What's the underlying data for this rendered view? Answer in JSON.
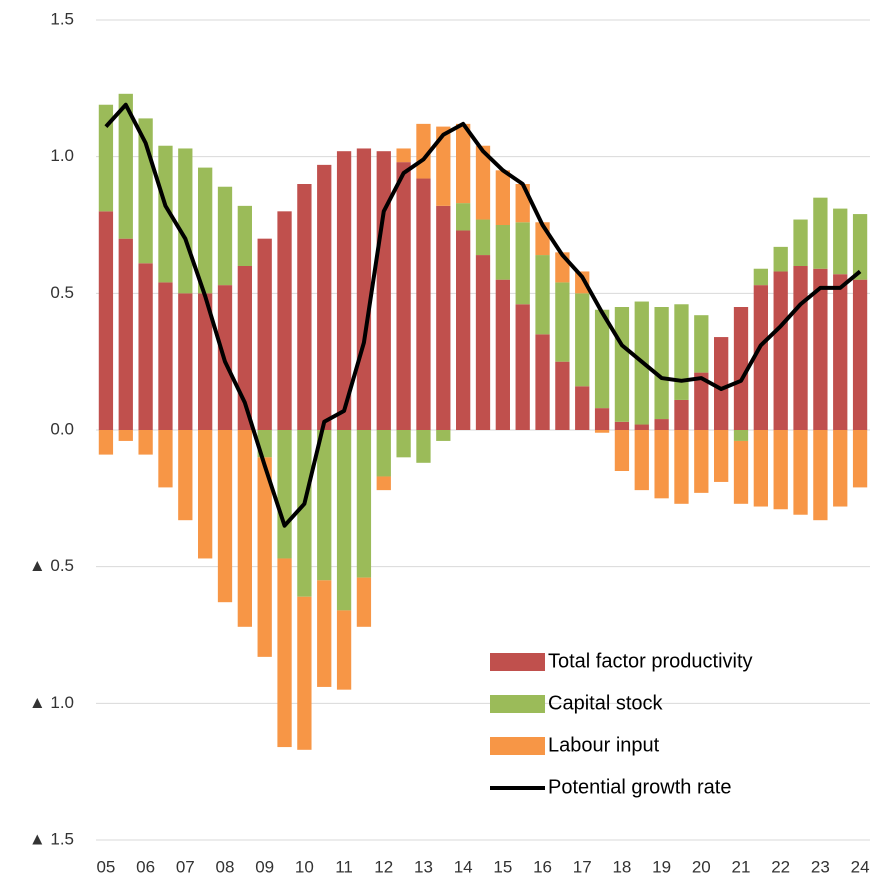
{
  "chart_data": {
    "type": "bar",
    "stacked": true,
    "categories": [
      "05",
      null,
      "06",
      null,
      "07",
      null,
      "08",
      null,
      "09",
      null,
      "10",
      null,
      "11",
      null,
      "12",
      null,
      "13",
      null,
      "14",
      null,
      "15",
      null,
      "16",
      null,
      "17",
      null,
      "18",
      null,
      "19",
      null,
      "20",
      null,
      "21",
      null,
      "22",
      null,
      "23",
      null,
      "24"
    ],
    "series": [
      {
        "name": "Total factor productivity",
        "color": "#c0504d",
        "type": "bar",
        "values": [
          0.8,
          0.7,
          0.61,
          0.54,
          0.5,
          0.5,
          0.53,
          0.6,
          0.7,
          0.8,
          0.9,
          0.97,
          1.02,
          1.03,
          1.02,
          0.98,
          0.92,
          0.82,
          0.73,
          0.64,
          0.55,
          0.46,
          0.35,
          0.25,
          0.16,
          0.08,
          0.03,
          0.02,
          0.04,
          0.11,
          0.21,
          0.34,
          0.45,
          0.53,
          0.58,
          0.6,
          0.59,
          0.57,
          0.55
        ]
      },
      {
        "name": "Capital stock",
        "color": "#9bbb59",
        "type": "bar",
        "values": [
          0.39,
          0.53,
          0.53,
          0.5,
          0.53,
          0.46,
          0.36,
          0.22,
          -0.1,
          -0.47,
          -0.61,
          -0.55,
          -0.66,
          -0.54,
          -0.17,
          -0.1,
          -0.12,
          -0.04,
          0.1,
          0.13,
          0.2,
          0.3,
          0.29,
          0.29,
          0.34,
          0.36,
          0.42,
          0.45,
          0.41,
          0.35,
          0.21,
          0,
          -0.04,
          0.06,
          0.09,
          0.17,
          0.26,
          0.24,
          0.24
        ]
      },
      {
        "name": "Labour input",
        "color": "#f79646",
        "type": "bar",
        "values": [
          -0.09,
          -0.04,
          -0.09,
          -0.21,
          -0.33,
          -0.47,
          -0.63,
          -0.72,
          -0.73,
          -0.69,
          -0.56,
          -0.39,
          -0.29,
          -0.18,
          -0.05,
          0.05,
          0.2,
          0.29,
          0.29,
          0.27,
          0.2,
          0.14,
          0.12,
          0.11,
          0.08,
          -0.01,
          -0.15,
          -0.22,
          -0.25,
          -0.27,
          -0.23,
          -0.19,
          -0.23,
          -0.28,
          -0.29,
          -0.31,
          -0.33,
          -0.28,
          -0.21
        ]
      },
      {
        "name": "Potential growth rate",
        "color": "#000000",
        "type": "line",
        "values": [
          1.11,
          1.19,
          1.05,
          0.82,
          0.7,
          0.49,
          0.25,
          0.1,
          -0.13,
          -0.35,
          -0.27,
          0.03,
          0.07,
          0.32,
          0.8,
          0.94,
          0.99,
          1.08,
          1.12,
          1.02,
          0.95,
          0.9,
          0.75,
          0.64,
          0.56,
          0.43,
          0.31,
          0.25,
          0.19,
          0.18,
          0.19,
          0.15,
          0.18,
          0.31,
          0.38,
          0.46,
          0.52,
          0.52,
          0.58
        ]
      }
    ],
    "ylim": [
      -1.5,
      1.5
    ],
    "yticks": [
      {
        "value": -1.5,
        "label": "▲ 1.5"
      },
      {
        "value": -1.0,
        "label": "▲ 1.0"
      },
      {
        "value": -0.5,
        "label": "▲ 0.5"
      },
      {
        "value": 0,
        "label": "0.0"
      },
      0.5,
      {
        "value": 1.0,
        "label": "1.0"
      },
      1.5
    ],
    "grid": true,
    "legend": "lower right"
  }
}
